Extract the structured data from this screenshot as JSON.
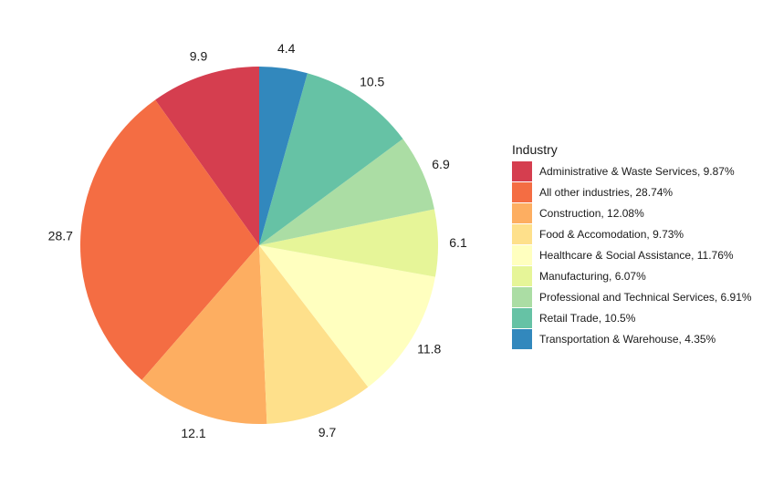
{
  "chart_data": {
    "type": "pie",
    "title": "",
    "start": "12 o'clock",
    "direction": "counterclockwise",
    "legend": {
      "title": "Industry",
      "position": "right"
    },
    "slices": [
      {
        "category": "Administrative & Waste Services",
        "value": 9.87,
        "label": "9.9",
        "legend_label": "Administrative & Waste Services, 9.87%",
        "color": "#D53E4F"
      },
      {
        "category": "All other industries",
        "value": 28.74,
        "label": "28.7",
        "legend_label": "All other industries, 28.74%",
        "color": "#F46D43"
      },
      {
        "category": "Construction",
        "value": 12.08,
        "label": "12.1",
        "legend_label": "Construction, 12.08%",
        "color": "#FDAE61"
      },
      {
        "category": "Food & Accomodation",
        "value": 9.73,
        "label": "9.7",
        "legend_label": "Food & Accomodation, 9.73%",
        "color": "#FEE08B"
      },
      {
        "category": "Healthcare & Social Assistance",
        "value": 11.76,
        "label": "11.8",
        "legend_label": "Healthcare & Social Assistance, 11.76%",
        "color": "#FFFFBF"
      },
      {
        "category": "Manufacturing",
        "value": 6.07,
        "label": "6.1",
        "legend_label": "Manufacturing, 6.07%",
        "color": "#E6F598"
      },
      {
        "category": "Professional and Technical Services",
        "value": 6.91,
        "label": "6.9",
        "legend_label": "Professional and Technical Services, 6.91%",
        "color": "#ABDDA4"
      },
      {
        "category": "Retail Trade",
        "value": 10.5,
        "label": "10.5",
        "legend_label": "Retail Trade, 10.5%",
        "color": "#66C2A5"
      },
      {
        "category": "Transportation & Warehouse",
        "value": 4.35,
        "label": "4.4",
        "legend_label": "Transportation & Warehouse, 4.35%",
        "color": "#3288BD"
      }
    ]
  }
}
